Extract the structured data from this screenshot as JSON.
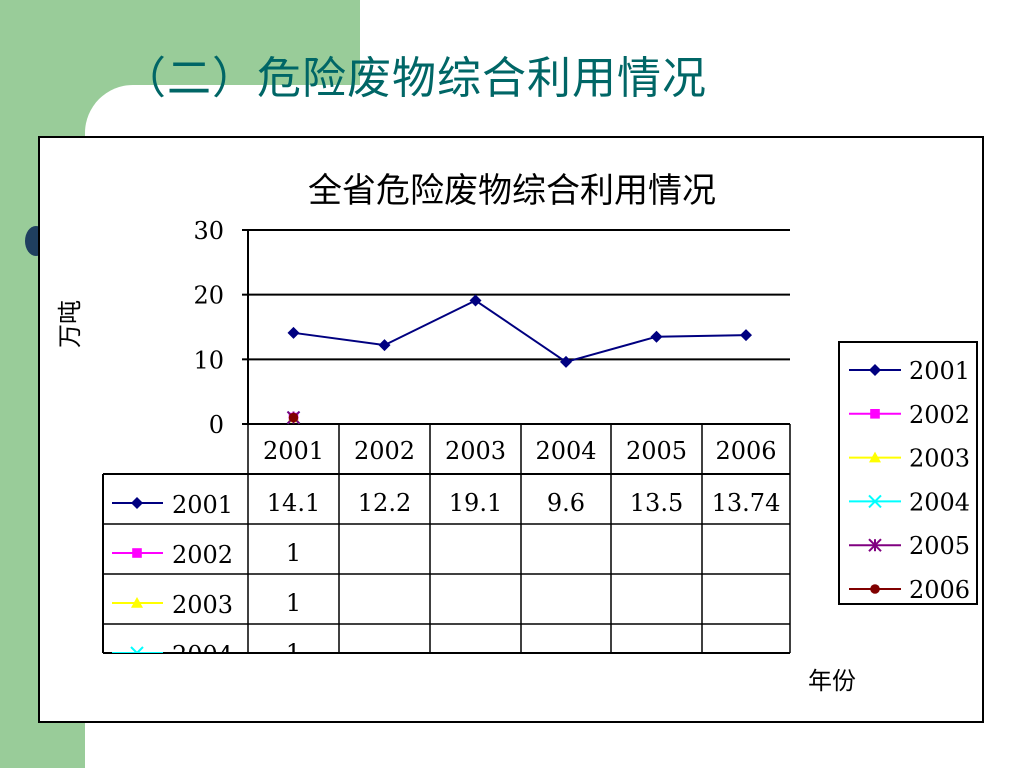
{
  "slide": {
    "title": "（二）危险废物综合利用情况"
  },
  "colors": {
    "green": "#99cc99",
    "title": "#006666",
    "dot": "#1f3f5f"
  },
  "chart_data": {
    "type": "line",
    "title": "全省危险废物综合利用情况",
    "ylabel": "万吨",
    "xlabel": "年份",
    "ylim": [
      0,
      30
    ],
    "yticks": [
      "0",
      "10",
      "20",
      "30"
    ],
    "categories": [
      "2001",
      "2002",
      "2003",
      "2004",
      "2005",
      "2006"
    ],
    "series": [
      {
        "name": "2001",
        "color": "#000080",
        "marker": "diamond",
        "values": [
          14.1,
          12.2,
          19.1,
          9.6,
          13.5,
          13.74
        ],
        "labels": [
          "14.1",
          "12.2",
          "19.1",
          "9.6",
          "13.5",
          "13.74"
        ]
      },
      {
        "name": "2002",
        "color": "#ff00ff",
        "marker": "square",
        "values": [
          1,
          null,
          null,
          null,
          null,
          null
        ],
        "labels": [
          "1",
          "",
          "",
          "",
          "",
          ""
        ]
      },
      {
        "name": "2003",
        "color": "#ffff00",
        "marker": "triangle",
        "values": [
          1,
          null,
          null,
          null,
          null,
          null
        ],
        "labels": [
          "1",
          "",
          "",
          "",
          "",
          ""
        ]
      },
      {
        "name": "2004",
        "color": "#00ffff",
        "marker": "x",
        "values": [
          1,
          null,
          null,
          null,
          null,
          null
        ],
        "labels": [
          "1",
          "",
          "",
          "",
          "",
          ""
        ]
      },
      {
        "name": "2005",
        "color": "#800080",
        "marker": "star",
        "values": [
          1,
          null,
          null,
          null,
          null,
          null
        ],
        "labels": []
      },
      {
        "name": "2006",
        "color": "#800000",
        "marker": "circle",
        "values": [
          1,
          null,
          null,
          null,
          null,
          null
        ],
        "labels": []
      }
    ],
    "table_visible_rows": 4,
    "legend": "right",
    "grid": true
  }
}
